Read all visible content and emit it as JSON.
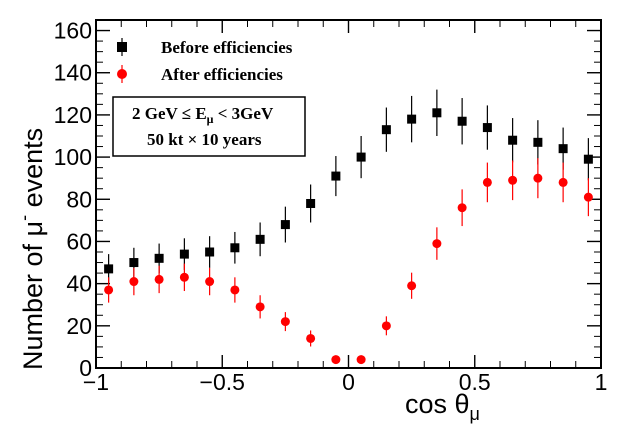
{
  "chart_data": {
    "type": "scatter",
    "title": "",
    "xlabel_main": "cos θ",
    "xlabel_sub": "μ",
    "ylabel_main": "Number of μ",
    "ylabel_sup": "-",
    "ylabel_tail": " events",
    "xlim": [
      -1,
      1
    ],
    "ylim": [
      0,
      165
    ],
    "x_ticks": [
      -1,
      -0.5,
      0,
      0.5,
      1
    ],
    "x_tick_labels": [
      "−1",
      "−0.5",
      "0",
      "0.5",
      "1"
    ],
    "y_ticks": [
      0,
      20,
      40,
      60,
      80,
      100,
      120,
      140,
      160
    ],
    "y_tick_labels": [
      "0",
      "20",
      "40",
      "60",
      "80",
      "100",
      "120",
      "140",
      "160"
    ],
    "grid": false,
    "legend_position": "top-left",
    "series": [
      {
        "name": "Before efficiencies",
        "color": "#000000",
        "marker": "square",
        "x": [
          -0.95,
          -0.85,
          -0.75,
          -0.65,
          -0.55,
          -0.45,
          -0.35,
          -0.25,
          -0.15,
          -0.05,
          0.05,
          0.15,
          0.25,
          0.35,
          0.45,
          0.55,
          0.65,
          0.75,
          0.85,
          0.95
        ],
        "y": [
          47,
          50,
          52,
          54,
          55,
          57,
          61,
          68,
          78,
          91,
          100,
          113,
          118,
          121,
          117,
          114,
          108,
          107,
          104,
          99
        ],
        "err": [
          7,
          7,
          7,
          7.5,
          7.5,
          7.5,
          8,
          8.5,
          9,
          9.5,
          10,
          10.5,
          11,
          11,
          11,
          10.5,
          10.5,
          10.5,
          10,
          10
        ]
      },
      {
        "name": "After efficiencies",
        "color": "#ff0000",
        "marker": "circle",
        "x": [
          -0.95,
          -0.85,
          -0.75,
          -0.65,
          -0.55,
          -0.45,
          -0.35,
          -0.25,
          -0.15,
          -0.05,
          0.05,
          0.15,
          0.25,
          0.35,
          0.45,
          0.55,
          0.65,
          0.75,
          0.85,
          0.95
        ],
        "y": [
          37,
          41,
          42,
          43,
          41,
          37,
          29,
          22,
          14,
          4,
          4,
          20,
          39,
          59,
          76,
          88,
          89,
          90,
          88,
          81
        ],
        "err": [
          6,
          6.5,
          6.5,
          6.5,
          6.5,
          6,
          5.5,
          4.5,
          3.8,
          2,
          2,
          4.5,
          6.2,
          7.7,
          8.7,
          9.4,
          9.4,
          9.5,
          9.4,
          9
        ]
      }
    ],
    "annotation": {
      "line1_a": "2 GeV  ≤ E",
      "line1_sub": "μ",
      "line1_b": " < 3GeV",
      "line2": "50 kt  × 10 years"
    }
  }
}
